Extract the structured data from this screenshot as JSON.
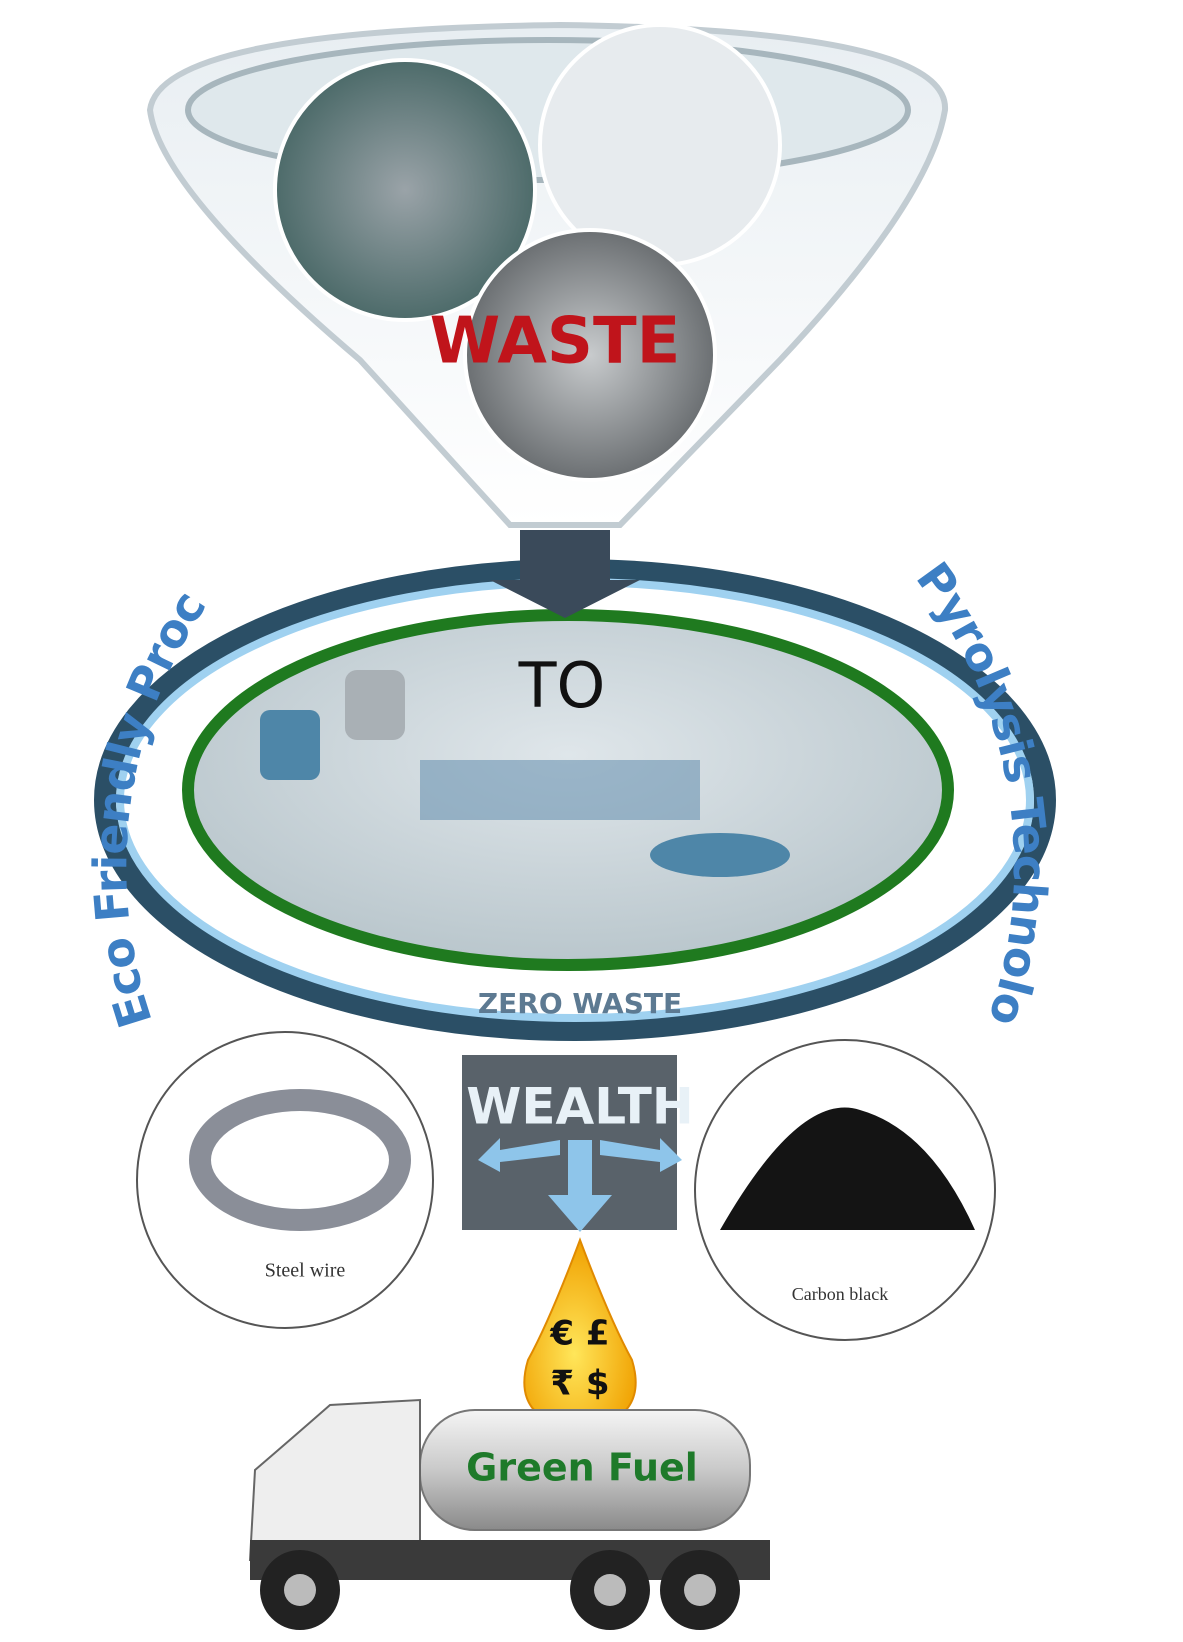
{
  "funnel": {
    "label": "WASTE"
  },
  "ring": {
    "center_label": "TO",
    "bottom_label": "ZERO WASTE",
    "left_arc": "Eco Friendly Process",
    "right_arc": "Pyrolysis Technology"
  },
  "output": {
    "label": "WEALTH",
    "products": [
      {
        "label": "Steel wire"
      },
      {
        "label": "Carbon black"
      }
    ],
    "drop": {
      "line1": "€ £",
      "line2": "₹ $"
    },
    "truck": {
      "label": "Green Fuel"
    }
  }
}
